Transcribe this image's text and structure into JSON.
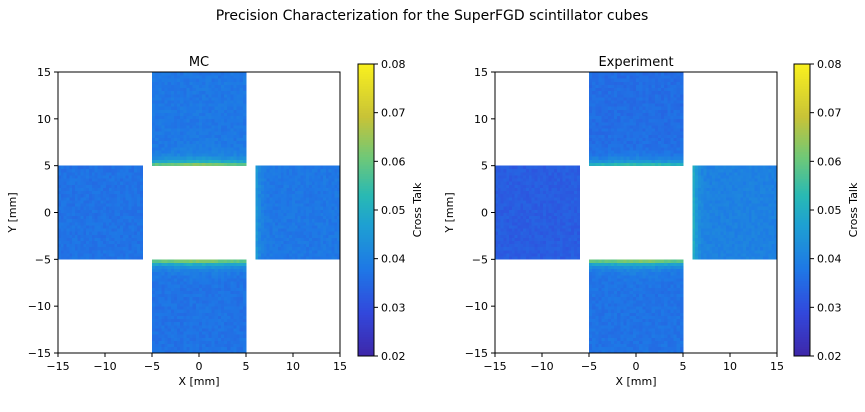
{
  "figure_title": "Precision Characterization for the SuperFGD scintillator cubes",
  "chart_data": [
    {
      "type": "heatmap",
      "title": "MC",
      "xlabel": "X [mm]",
      "ylabel": "Y [mm]",
      "xlim": [
        -15,
        15
      ],
      "ylim": [
        -15,
        15
      ],
      "xticks": [
        -15,
        -10,
        -5,
        0,
        5,
        10,
        15
      ],
      "yticks": [
        -15,
        -10,
        -5,
        0,
        5,
        10,
        15
      ],
      "colorbar": {
        "label": "Cross Talk",
        "range": [
          0.02,
          0.08
        ],
        "ticks": [
          0.02,
          0.03,
          0.04,
          0.05,
          0.06,
          0.07,
          0.08
        ]
      },
      "colormap": "viridis-like",
      "regions": [
        {
          "name": "top",
          "x": [
            -5,
            5
          ],
          "y": [
            5,
            15
          ],
          "base": 0.038,
          "hot_edge": "bottom",
          "hot_value": 0.068
        },
        {
          "name": "left",
          "x": [
            -15,
            -6
          ],
          "y": [
            -5,
            5
          ],
          "base": 0.037,
          "hot_edge": "none",
          "hot_value": 0.037
        },
        {
          "name": "right",
          "x": [
            6,
            15
          ],
          "y": [
            -5,
            5
          ],
          "base": 0.038,
          "hot_edge": "left",
          "hot_value": 0.048
        },
        {
          "name": "bottom",
          "x": [
            -5,
            5
          ],
          "y": [
            -15,
            -5
          ],
          "base": 0.037,
          "hot_edge": "top",
          "hot_value": 0.068
        }
      ]
    },
    {
      "type": "heatmap",
      "title": "Experiment",
      "xlabel": "X [mm]",
      "ylabel": "Y [mm]",
      "xlim": [
        -15,
        15
      ],
      "ylim": [
        -15,
        15
      ],
      "xticks": [
        -15,
        -10,
        -5,
        0,
        5,
        10,
        15
      ],
      "yticks": [
        -15,
        -10,
        -5,
        0,
        5,
        10,
        15
      ],
      "colorbar": {
        "label": "Cross Talk",
        "range": [
          0.02,
          0.08
        ],
        "ticks": [
          0.02,
          0.03,
          0.04,
          0.05,
          0.06,
          0.07,
          0.08
        ]
      },
      "colormap": "viridis-like",
      "regions": [
        {
          "name": "top",
          "x": [
            -5,
            5
          ],
          "y": [
            5,
            15
          ],
          "base": 0.036,
          "hot_edge": "bottom",
          "hot_value": 0.058
        },
        {
          "name": "left",
          "x": [
            -15,
            -6
          ],
          "y": [
            -5,
            5
          ],
          "base": 0.033,
          "hot_edge": "none",
          "hot_value": 0.033
        },
        {
          "name": "right",
          "x": [
            6,
            15
          ],
          "y": [
            -5,
            5
          ],
          "base": 0.04,
          "hot_edge": "left",
          "hot_value": 0.055
        },
        {
          "name": "bottom",
          "x": [
            -5,
            5
          ],
          "y": [
            -15,
            -5
          ],
          "base": 0.037,
          "hot_edge": "top",
          "hot_value": 0.068
        }
      ]
    }
  ]
}
